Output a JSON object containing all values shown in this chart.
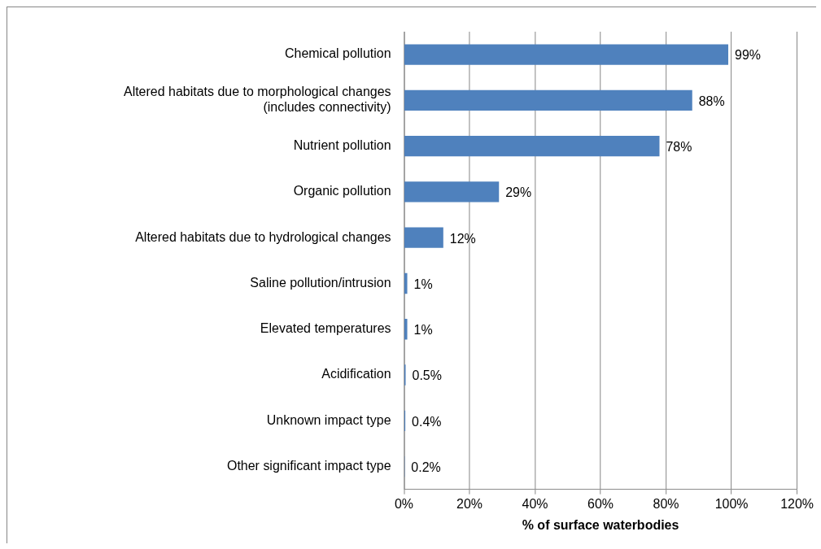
{
  "chart_data": {
    "type": "bar",
    "orientation": "horizontal",
    "xlabel": "% of surface waterbodies",
    "categories": [
      "Chemical pollution",
      "Altered habitats due to morphological changes (includes connectivity)",
      "Nutrient pollution",
      "Organic pollution",
      "Altered habitats due to hydrological changes",
      "Saline pollution/intrusion",
      "Elevated temperatures",
      "Acidification",
      "Unknown impact type",
      "Other significant impact type"
    ],
    "values": [
      99,
      88,
      78,
      29,
      12,
      1,
      1,
      0.5,
      0.4,
      0.2
    ],
    "value_labels": [
      "99%",
      "88%",
      "78%",
      "29%",
      "12%",
      "1%",
      "1%",
      "0.5%",
      "0.4%",
      "0.2%"
    ],
    "color": "#4f81bd",
    "xlim": [
      0,
      120
    ],
    "xticks": [
      {
        "value": 0,
        "label": "0%"
      },
      {
        "value": 20,
        "label": "20%"
      },
      {
        "value": 40,
        "label": "40%"
      },
      {
        "value": 60,
        "label": "60%"
      },
      {
        "value": 80,
        "label": "80%"
      },
      {
        "value": 100,
        "label": "100%"
      },
      {
        "value": 120,
        "label": "120%"
      }
    ],
    "grid": "x",
    "legend": false
  }
}
